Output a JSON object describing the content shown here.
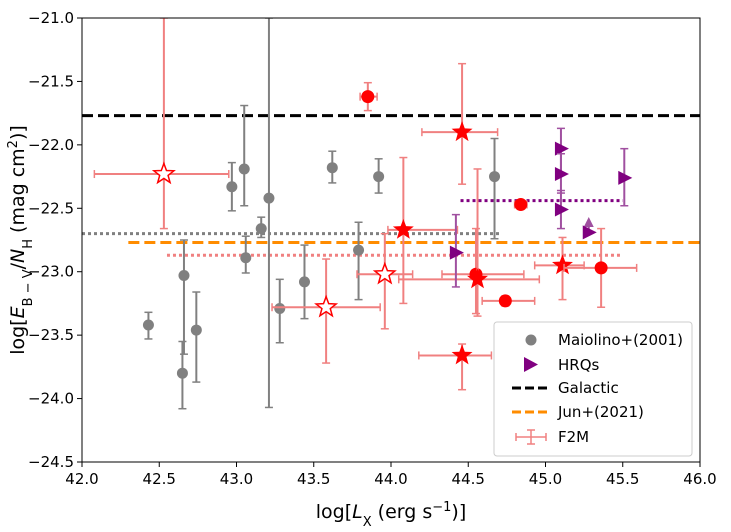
{
  "chart_data": {
    "type": "scatter",
    "xlabel": "log[L_X (erg s^-1)]",
    "ylabel": "log[E_B-V/N_H (mag cm^2)]",
    "xlim": [
      42.0,
      46.0
    ],
    "ylim": [
      -24.5,
      -21.0
    ],
    "x_ticks": [
      "42.0",
      "42.5",
      "43.0",
      "43.5",
      "44.0",
      "44.5",
      "45.0",
      "45.5",
      "46.0"
    ],
    "y_ticks": [
      "−21.0",
      "−21.5",
      "−22.0",
      "−22.5",
      "−23.0",
      "−23.5",
      "−24.0",
      "−24.5"
    ],
    "colors": {
      "maiolino": "#808080",
      "hrqs": "#800080",
      "galactic": "#000000",
      "jun": "#ff8c00",
      "f2m": "#ff0000",
      "f2m_err": "#f08080"
    },
    "reference_lines": [
      {
        "name": "Galactic",
        "y": -21.77,
        "x_range": [
          42.0,
          46.0
        ],
        "style": "dashed",
        "color": "#000000"
      },
      {
        "name": "Jun+(2021)",
        "y": -22.77,
        "x_range": [
          42.3,
          46.0
        ],
        "style": "dashed",
        "color": "#ff8c00"
      },
      {
        "name": "Maiolino mean",
        "y": -22.7,
        "x_range": [
          42.0,
          44.7
        ],
        "style": "dotted",
        "color": "#808080"
      },
      {
        "name": "HRQs mean",
        "y": -22.44,
        "x_range": [
          44.45,
          45.5
        ],
        "style": "dotted",
        "color": "#800080"
      },
      {
        "name": "F2M mean",
        "y": -22.87,
        "x_range": [
          42.55,
          45.5
        ],
        "style": "dotted",
        "color": "#f08080"
      }
    ],
    "series": [
      {
        "name": "Maiolino+(2001)",
        "marker": "circle",
        "points": [
          {
            "x": 42.43,
            "y": -23.42,
            "ylo": -23.53,
            "yhi": -23.32
          },
          {
            "x": 42.65,
            "y": -23.8,
            "ylo": -24.08,
            "yhi": -23.55
          },
          {
            "x": 42.66,
            "y": -23.03,
            "ylo": -23.65,
            "yhi": -22.75
          },
          {
            "x": 42.74,
            "y": -23.46,
            "ylo": -23.87,
            "yhi": -23.16
          },
          {
            "x": 42.97,
            "y": -22.33,
            "ylo": -22.52,
            "yhi": -22.14
          },
          {
            "x": 43.05,
            "y": -22.19,
            "ylo": -22.48,
            "yhi": -21.69
          },
          {
            "x": 43.06,
            "y": -22.89,
            "ylo": -23.01,
            "yhi": -22.72
          },
          {
            "x": 43.16,
            "y": -22.66,
            "ylo": -22.73,
            "yhi": -22.57
          },
          {
            "x": 43.21,
            "y": -22.42,
            "ylo": -24.07,
            "yhi": -21.0
          },
          {
            "x": 43.28,
            "y": -23.29,
            "ylo": -23.56,
            "yhi": -23.06
          },
          {
            "x": 43.44,
            "y": -23.08,
            "ylo": -23.37,
            "yhi": -22.79
          },
          {
            "x": 43.62,
            "y": -22.18,
            "ylo": -22.3,
            "yhi": -22.05
          },
          {
            "x": 43.79,
            "y": -22.83,
            "ylo": -23.22,
            "yhi": -22.61
          },
          {
            "x": 43.92,
            "y": -22.25,
            "ylo": -22.38,
            "yhi": -22.11
          },
          {
            "x": 44.67,
            "y": -22.25,
            "ylo": -22.74,
            "yhi": -21.95
          }
        ]
      },
      {
        "name": "HRQs",
        "marker": "triangle-right",
        "points": [
          {
            "x": 44.42,
            "y": -22.85,
            "ylo": -23.12,
            "yhi": -22.55,
            "upper_limit": false
          },
          {
            "x": 45.1,
            "y": -22.03,
            "ylo": -22.22,
            "yhi": -21.87,
            "upper_limit": false
          },
          {
            "x": 45.1,
            "y": -22.23,
            "ylo": -22.38,
            "yhi": -22.07,
            "upper_limit": false
          },
          {
            "x": 45.1,
            "y": -22.51,
            "ylo": -22.66,
            "yhi": -22.36,
            "upper_limit": false
          },
          {
            "x": 45.28,
            "y": -22.69,
            "ylo": -22.73,
            "yhi": -22.6,
            "upper_limit": true
          },
          {
            "x": 45.51,
            "y": -22.26,
            "ylo": -22.48,
            "yhi": -22.03,
            "upper_limit": false
          }
        ]
      },
      {
        "name": "F2M",
        "marker": "mixed",
        "points": [
          {
            "x": 42.53,
            "y": -22.23,
            "xlo": 42.08,
            "xhi": 42.95,
            "ylo": -22.66,
            "yhi": -21.0,
            "marker": "star-open"
          },
          {
            "x": 43.58,
            "y": -23.28,
            "xlo": 43.23,
            "xhi": 43.93,
            "ylo": -23.72,
            "yhi": -22.9,
            "marker": "star-open"
          },
          {
            "x": 43.96,
            "y": -23.02,
            "xlo": 43.78,
            "xhi": 44.14,
            "ylo": -23.45,
            "yhi": -22.7,
            "marker": "star-open"
          },
          {
            "x": 43.85,
            "y": -21.62,
            "xlo": 43.8,
            "xhi": 43.91,
            "ylo": -21.73,
            "yhi": -21.51,
            "marker": "circle"
          },
          {
            "x": 44.08,
            "y": -22.67,
            "xlo": 43.98,
            "xhi": 44.43,
            "ylo": -23.25,
            "yhi": -22.1,
            "marker": "star"
          },
          {
            "x": 44.46,
            "y": -21.9,
            "xlo": 44.2,
            "xhi": 44.69,
            "ylo": -22.31,
            "yhi": -21.36,
            "marker": "star"
          },
          {
            "x": 44.46,
            "y": -23.66,
            "xlo": 44.18,
            "xhi": 44.65,
            "ylo": -23.93,
            "yhi": -23.57,
            "marker": "star"
          },
          {
            "x": 44.55,
            "y": -23.02,
            "xlo": 44.33,
            "xhi": 44.86,
            "ylo": -23.33,
            "yhi": -22.66,
            "marker": "circle"
          },
          {
            "x": 44.56,
            "y": -23.06,
            "xlo": 44.05,
            "xhi": 44.96,
            "ylo": -23.35,
            "yhi": -22.19,
            "marker": "star"
          },
          {
            "x": 44.74,
            "y": -23.23,
            "xlo": 44.59,
            "xhi": 44.93,
            "ylo": -23.27,
            "yhi": -23.19,
            "marker": "circle"
          },
          {
            "x": 44.84,
            "y": -22.47,
            "xlo": 44.8,
            "xhi": 44.88,
            "ylo": -22.49,
            "yhi": -22.44,
            "marker": "circle"
          },
          {
            "x": 45.11,
            "y": -22.95,
            "xlo": 44.93,
            "xhi": 45.25,
            "ylo": -23.22,
            "yhi": -22.73,
            "marker": "star"
          },
          {
            "x": 45.36,
            "y": -22.97,
            "xlo": 45.12,
            "xhi": 45.59,
            "ylo": -23.28,
            "yhi": -22.66,
            "marker": "circle"
          }
        ]
      }
    ],
    "legend": {
      "position": "lower-right",
      "entries": [
        "Maiolino+(2001)",
        "HRQs",
        "Galactic",
        "Jun+(2021)",
        "F2M"
      ]
    }
  }
}
